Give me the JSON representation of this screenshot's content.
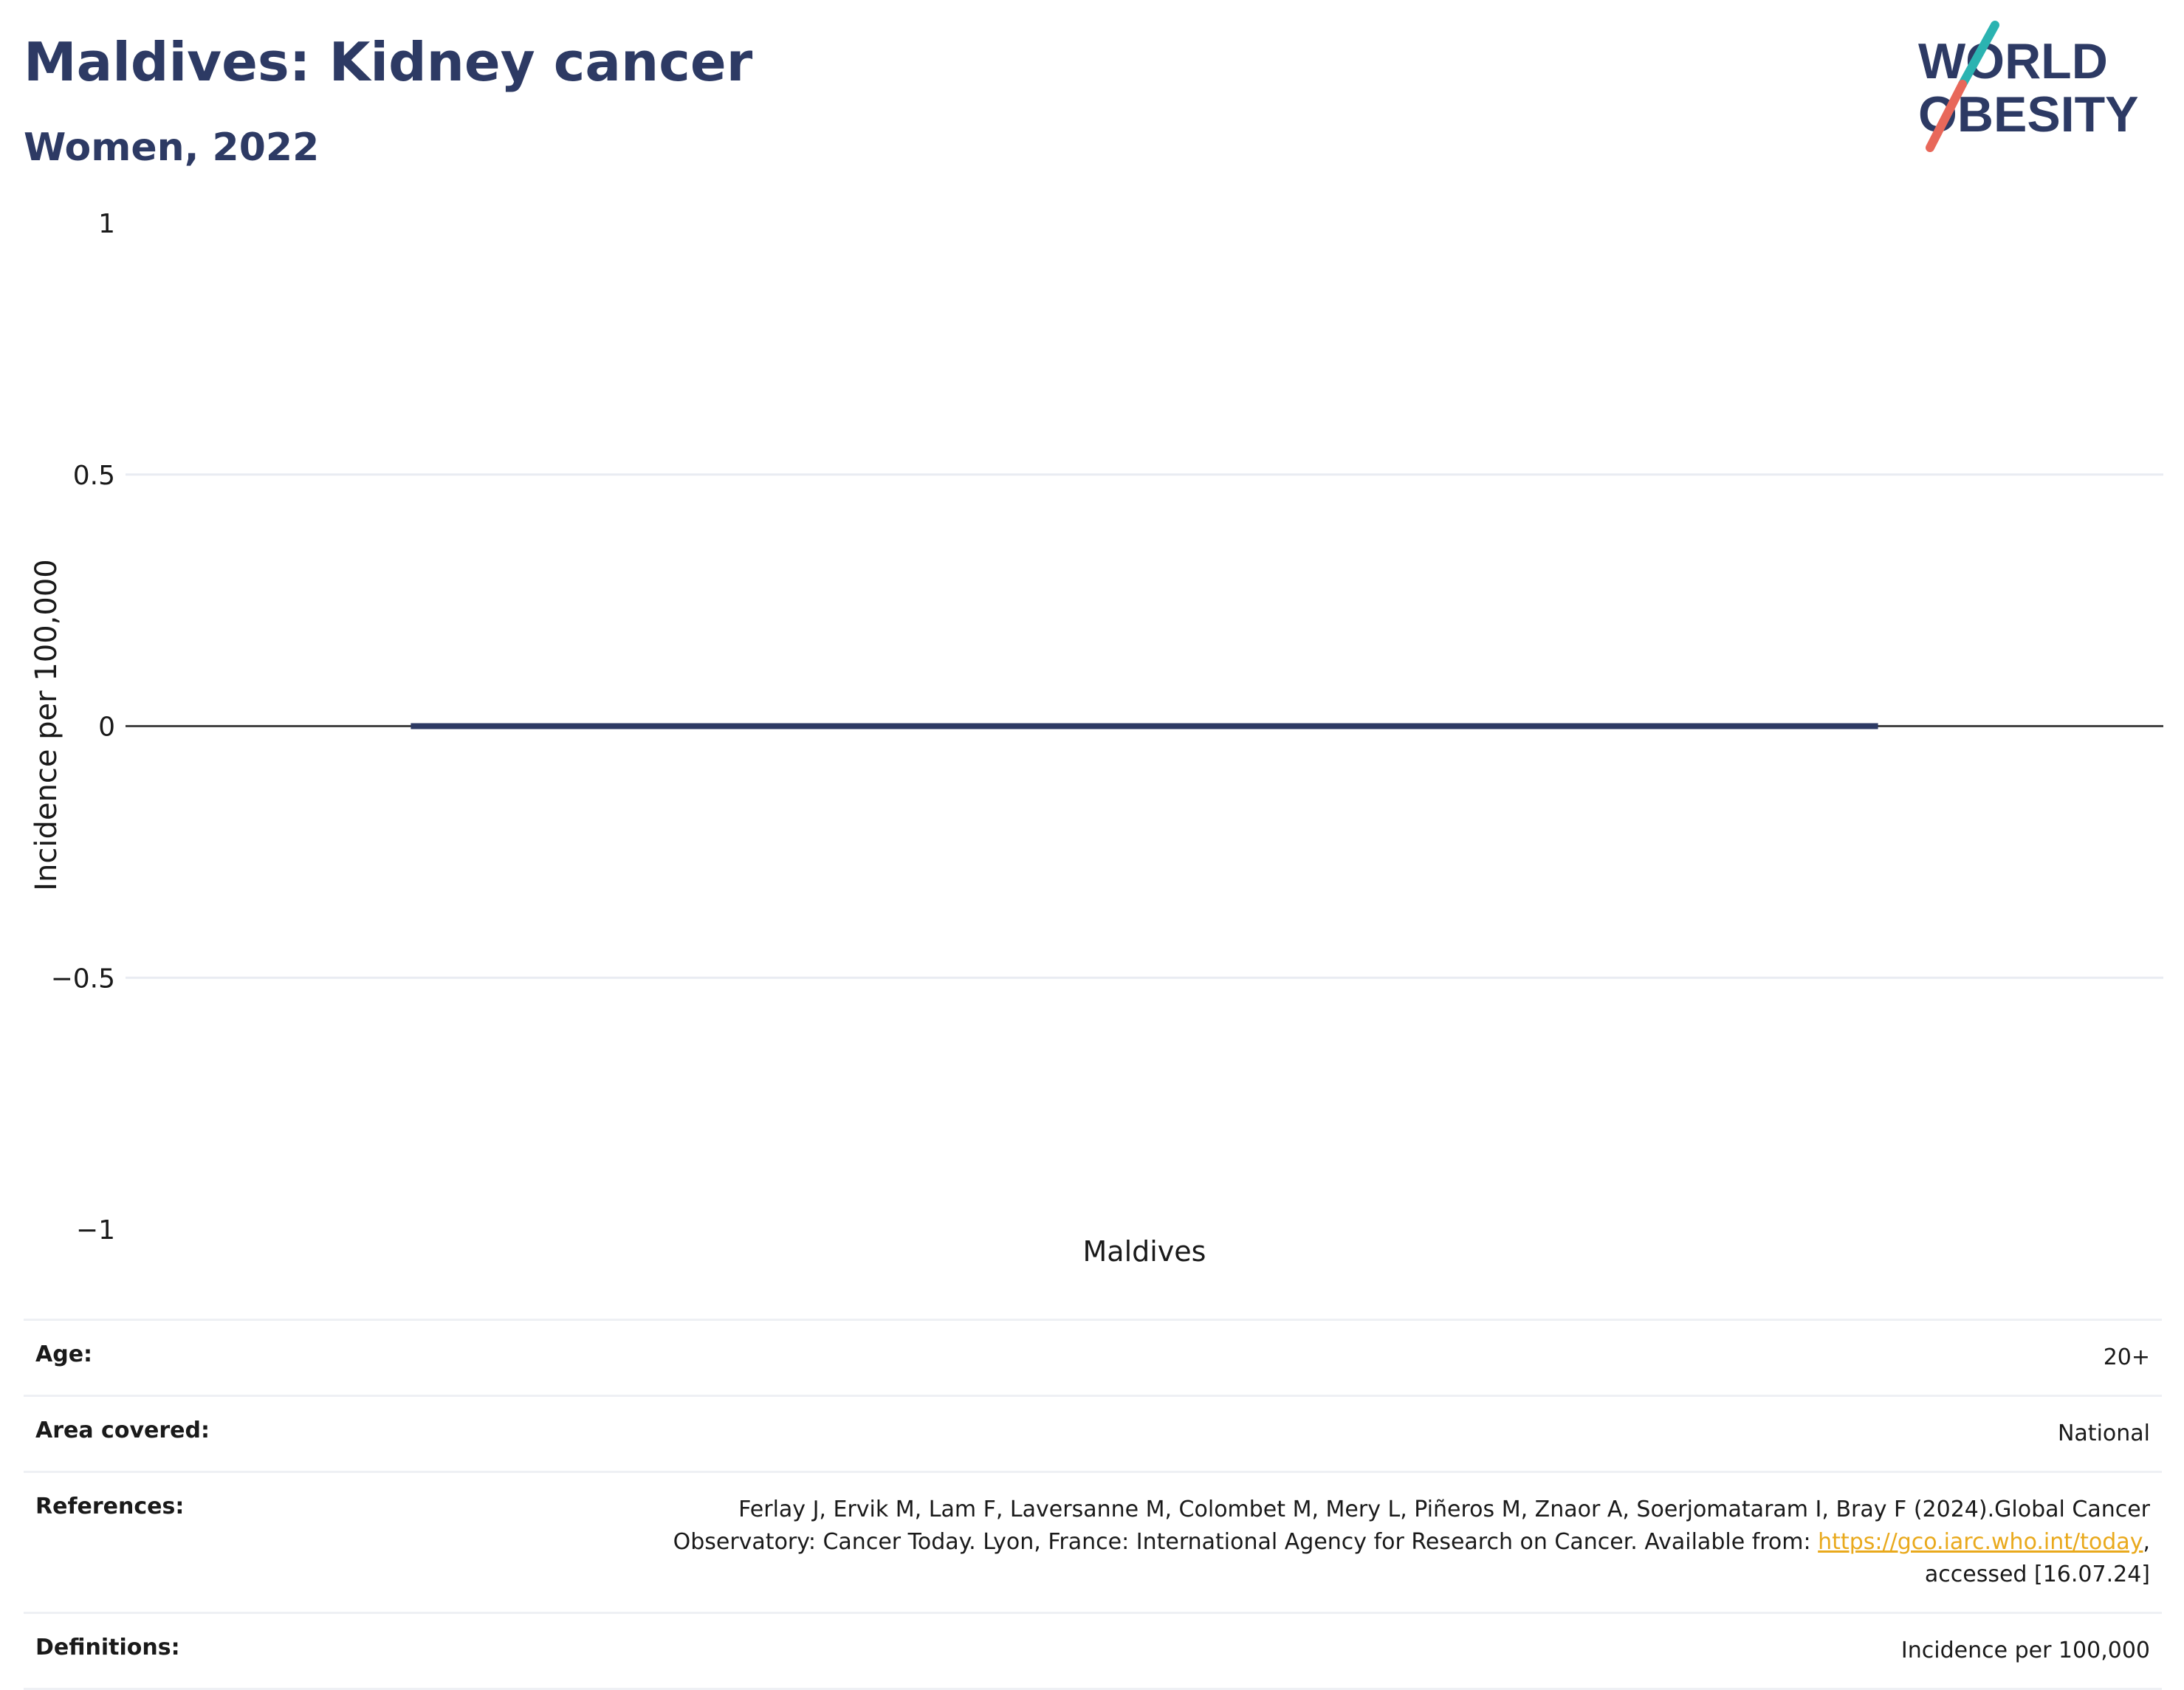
{
  "header": {
    "title": "Maldives: Kidney cancer",
    "subtitle": "Women, 2022"
  },
  "logo": {
    "line1": "WORLD",
    "line2": "OBESITY",
    "colors": {
      "text": "#2d3a64",
      "slash_top": "#2bb3b1",
      "slash_bottom": "#e8685a"
    }
  },
  "chart_data": {
    "type": "bar",
    "categories": [
      "Maldives"
    ],
    "values": [
      0
    ],
    "ylabel": "Incidence per 100,000",
    "ylim": [
      -1,
      1
    ],
    "yticks": [
      1,
      0.5,
      0,
      -0.5,
      -1
    ],
    "ytick_labels": [
      "1",
      "0.5",
      "0",
      "−0.5",
      "−1"
    ],
    "grid": true,
    "bar_color": "#2d3a64"
  },
  "meta": [
    {
      "key": "Age:",
      "value": "20+"
    },
    {
      "key": "Area covered:",
      "value": "National"
    },
    {
      "key": "References:",
      "value_line1": "Ferlay J, Ervik M, Lam F, Laversanne M, Colombet M, Mery L, Piñeros M, Znaor A, Soerjomataram I, Bray F (2024).Global Cancer",
      "value_line2_pre": "Observatory: Cancer Today. Lyon, France: International Agency for Research on Cancer. Available from: ",
      "link": "https://gco.iarc.who.int/today",
      "value_line2_post": ",",
      "value_line3": "accessed [16.07.24]"
    },
    {
      "key": "Definitions:",
      "value": "Incidence per 100,000"
    }
  ]
}
